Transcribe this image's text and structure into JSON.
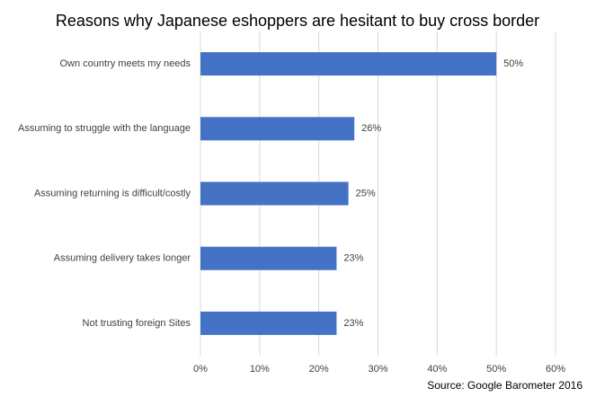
{
  "chart_data": {
    "type": "bar",
    "orientation": "horizontal",
    "title": "Reasons why Japanese eshoppers are hesitant to buy cross border",
    "source": "Source: Google Barometer 2016",
    "categories": [
      "Own country meets my needs",
      "Assuming to struggle with the language",
      "Assuming returning is difficult/costly",
      "Assuming delivery takes longer",
      "Not trusting foreign Sites"
    ],
    "values": [
      50,
      26,
      25,
      23,
      23
    ],
    "value_labels": [
      "50%",
      "26%",
      "25%",
      "23%",
      "23%"
    ],
    "color": "#4472c4",
    "xlim": [
      0,
      60
    ],
    "xticks": [
      {
        "value": 0,
        "label": "0%"
      },
      {
        "value": 10,
        "label": "10%"
      },
      {
        "value": 20,
        "label": "20%"
      },
      {
        "value": 30,
        "label": "30%"
      },
      {
        "value": 40,
        "label": "40%"
      },
      {
        "value": 50,
        "label": "50%"
      },
      {
        "value": 60,
        "label": "60%"
      }
    ],
    "grid": true
  }
}
